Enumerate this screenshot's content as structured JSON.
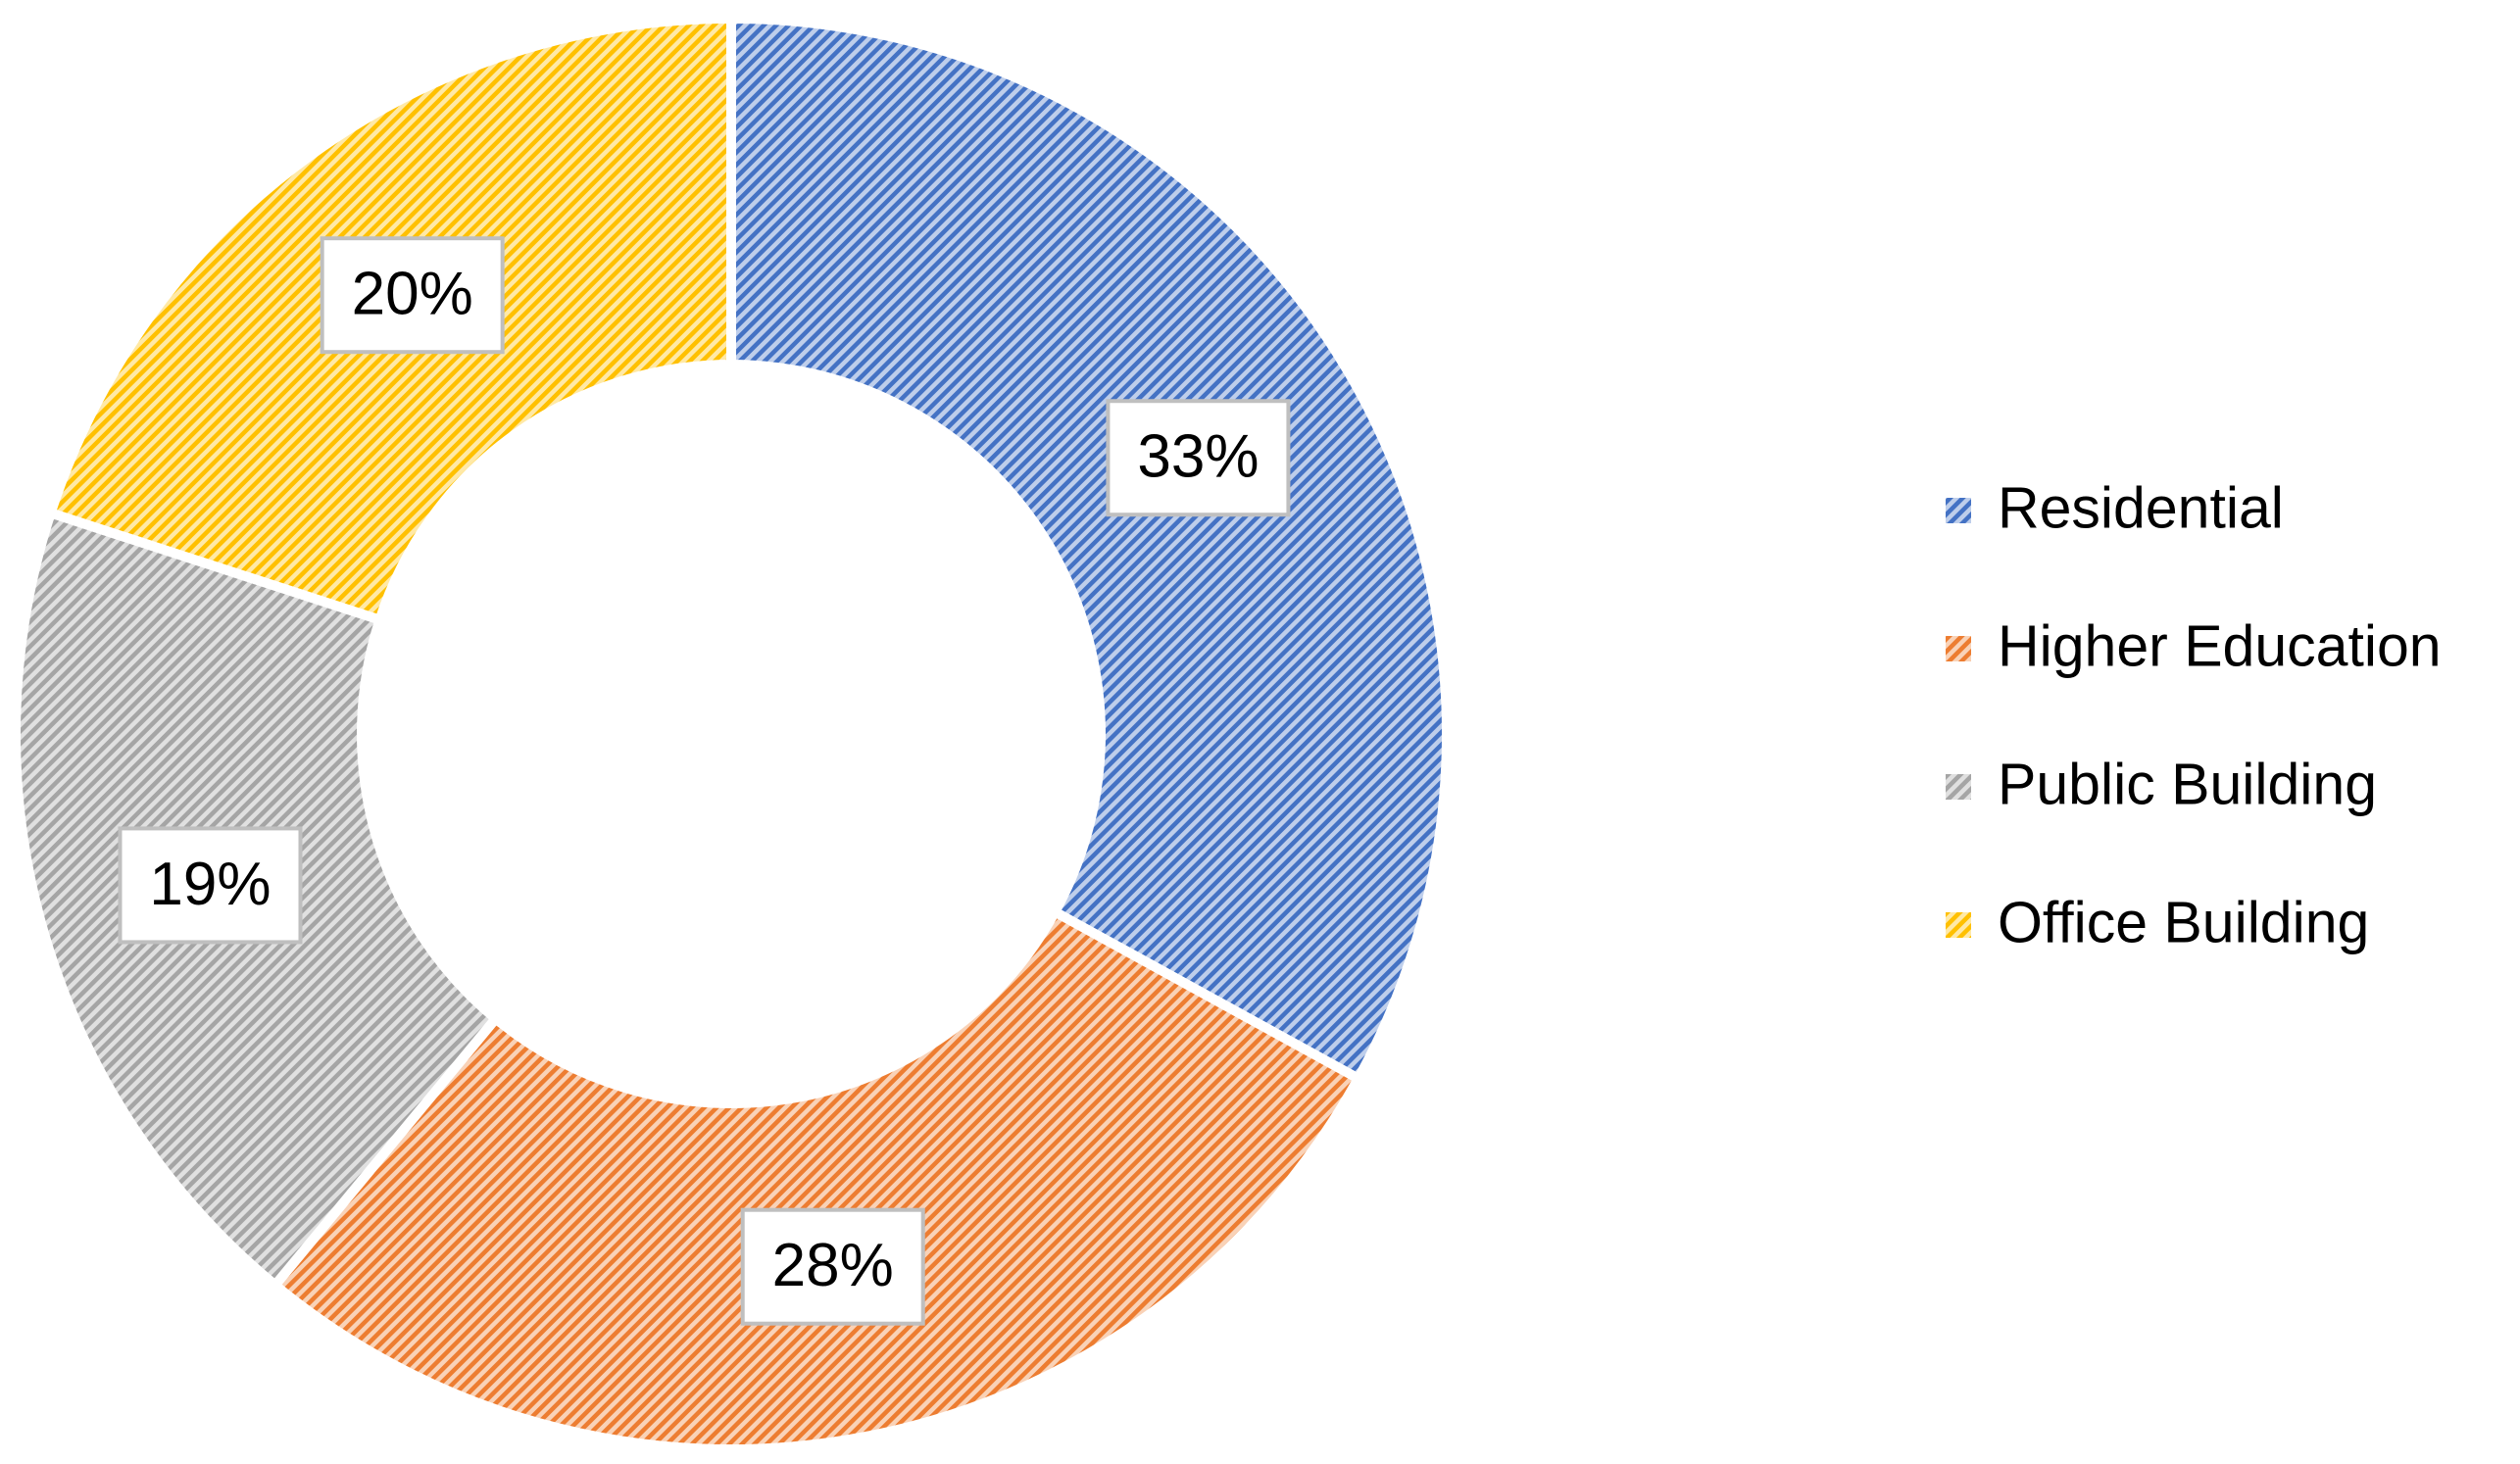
{
  "chart_data": {
    "type": "donut",
    "categories": [
      "Residential",
      "Higher Education",
      "Public Building",
      "Office Building"
    ],
    "values": [
      33,
      28,
      19,
      20
    ],
    "value_labels": [
      "33%",
      "28%",
      "19%",
      "20%"
    ],
    "colors": [
      "#4472c4",
      "#ed7d31",
      "#a5a5a5",
      "#ffc000"
    ],
    "legend": "right"
  }
}
